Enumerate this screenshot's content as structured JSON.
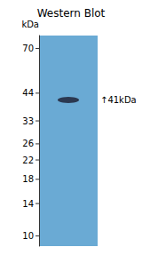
{
  "chart_data": {
    "type": "scatter",
    "title": "Western Blot",
    "ylabel": "kDa",
    "categories": [
      null
    ],
    "values": [
      41
    ],
    "color": "#1c1c2e",
    "annotation": "↑41kDa",
    "ylim": [
      9,
      80
    ],
    "yticks": [
      70,
      44,
      33,
      26,
      22,
      18,
      14,
      10
    ],
    "log": "y",
    "grid": false,
    "tick_labels": "y"
  }
}
